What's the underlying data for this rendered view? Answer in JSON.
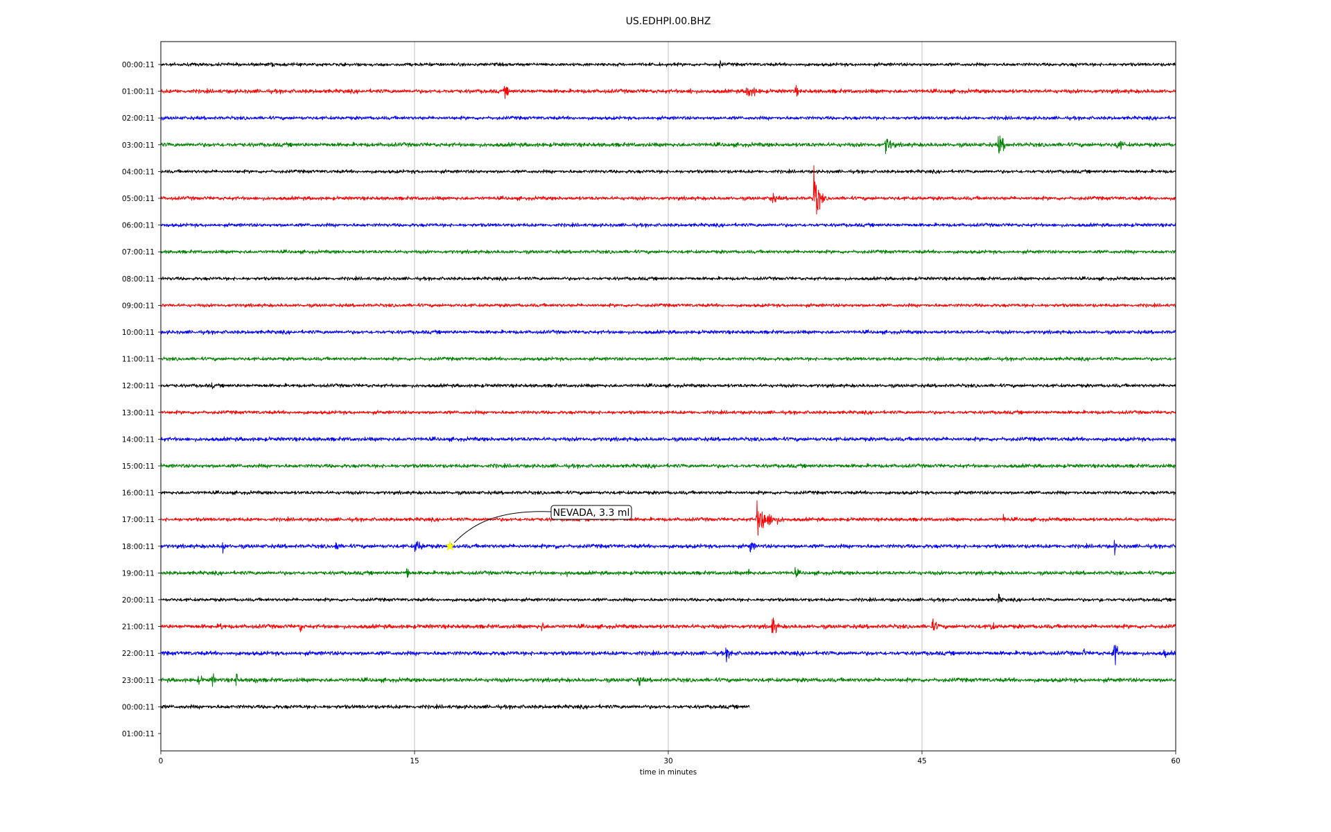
{
  "chart_data": {
    "type": "line",
    "title": "US.EDHPI.00.BHZ",
    "xlabel": "time in minutes",
    "ylabel": "",
    "xlim": [
      0,
      60
    ],
    "x_ticks": [
      0,
      15,
      30,
      45,
      60
    ],
    "x_tick_labels": [
      "0",
      "15",
      "30",
      "45",
      "60"
    ],
    "grid": "vertical at x ticks",
    "row_labels": [
      "00:00:11",
      "01:00:11",
      "02:00:11",
      "03:00:11",
      "04:00:11",
      "05:00:11",
      "06:00:11",
      "07:00:11",
      "08:00:11",
      "09:00:11",
      "10:00:11",
      "11:00:11",
      "12:00:11",
      "13:00:11",
      "14:00:11",
      "15:00:11",
      "16:00:11",
      "17:00:11",
      "18:00:11",
      "19:00:11",
      "20:00:11",
      "21:00:11",
      "22:00:11",
      "23:00:11",
      "00:00:11",
      "01:00:11"
    ],
    "color_cycle": [
      "#000000",
      "#ff0000",
      "#0000ff",
      "#008000"
    ],
    "traces": [
      {
        "row": 0,
        "start": 0,
        "end": 60,
        "noise": 2.2,
        "events": [
          {
            "t": 6.5,
            "amp": 4,
            "dur": 0.1
          },
          {
            "t": 33,
            "amp": 6,
            "dur": 0.3
          },
          {
            "t": 54,
            "amp": 5,
            "dur": 0.2
          }
        ]
      },
      {
        "row": 1,
        "start": 0,
        "end": 60,
        "noise": 2.6,
        "events": [
          {
            "t": 1.5,
            "amp": 6,
            "dur": 0.1
          },
          {
            "t": 20.3,
            "amp": 9,
            "dur": 0.5
          },
          {
            "t": 31.3,
            "amp": 6,
            "dur": 0.1
          },
          {
            "t": 34.6,
            "amp": 11,
            "dur": 1.2
          },
          {
            "t": 37.5,
            "amp": 8,
            "dur": 0.3
          }
        ]
      },
      {
        "row": 2,
        "start": 0,
        "end": 60,
        "noise": 2.3,
        "events": []
      },
      {
        "row": 3,
        "start": 0,
        "end": 60,
        "noise": 2.7,
        "events": [
          {
            "t": 42.8,
            "amp": 13,
            "dur": 0.8
          },
          {
            "t": 49.5,
            "amp": 16,
            "dur": 0.6
          },
          {
            "t": 56.5,
            "amp": 9,
            "dur": 0.8
          }
        ]
      },
      {
        "row": 4,
        "start": 0,
        "end": 60,
        "noise": 2.2,
        "events": [
          {
            "t": 15,
            "amp": 4,
            "dur": 0.2
          }
        ]
      },
      {
        "row": 5,
        "start": 0,
        "end": 60,
        "noise": 2.4,
        "events": [
          {
            "t": 36,
            "amp": 8,
            "dur": 1.0
          },
          {
            "t": 38.6,
            "amp": 38,
            "dur": 0.5
          }
        ]
      },
      {
        "row": 6,
        "start": 0,
        "end": 60,
        "noise": 2.3,
        "events": []
      },
      {
        "row": 7,
        "start": 0,
        "end": 60,
        "noise": 2.3,
        "events": []
      },
      {
        "row": 8,
        "start": 0,
        "end": 60,
        "noise": 2.2,
        "events": []
      },
      {
        "row": 9,
        "start": 0,
        "end": 60,
        "noise": 2.2,
        "events": []
      },
      {
        "row": 10,
        "start": 0,
        "end": 60,
        "noise": 2.4,
        "events": []
      },
      {
        "row": 11,
        "start": 0,
        "end": 60,
        "noise": 2.3,
        "events": []
      },
      {
        "row": 12,
        "start": 0,
        "end": 60,
        "noise": 2.3,
        "events": [
          {
            "t": 3,
            "amp": 5,
            "dur": 0.1
          }
        ]
      },
      {
        "row": 13,
        "start": 0,
        "end": 60,
        "noise": 2.3,
        "events": []
      },
      {
        "row": 14,
        "start": 0,
        "end": 60,
        "noise": 2.6,
        "events": []
      },
      {
        "row": 15,
        "start": 0,
        "end": 60,
        "noise": 2.5,
        "events": [
          {
            "t": 19.7,
            "amp": 5,
            "dur": 0.1
          }
        ]
      },
      {
        "row": 16,
        "start": 0,
        "end": 60,
        "noise": 2.3,
        "events": []
      },
      {
        "row": 17,
        "start": 0,
        "end": 60,
        "noise": 2.4,
        "events": [
          {
            "t": 35.2,
            "amp": 22,
            "dur": 1.6
          },
          {
            "t": 49.8,
            "amp": 7,
            "dur": 0.3
          }
        ]
      },
      {
        "row": 18,
        "start": 0,
        "end": 60,
        "noise": 2.6,
        "events": [
          {
            "t": 3.6,
            "amp": 13,
            "dur": 0.2
          },
          {
            "t": 10.3,
            "amp": 9,
            "dur": 0.4
          },
          {
            "t": 15,
            "amp": 9,
            "dur": 1.2
          },
          {
            "t": 23.3,
            "amp": 6,
            "dur": 0.2
          },
          {
            "t": 34.8,
            "amp": 10,
            "dur": 0.5
          },
          {
            "t": 56.3,
            "amp": 11,
            "dur": 0.2
          }
        ]
      },
      {
        "row": 19,
        "start": 0,
        "end": 60,
        "noise": 2.5,
        "events": [
          {
            "t": 14.5,
            "amp": 13,
            "dur": 0.2
          },
          {
            "t": 24,
            "amp": 6,
            "dur": 0.4
          },
          {
            "t": 34.7,
            "amp": 9,
            "dur": 0.2
          },
          {
            "t": 37.5,
            "amp": 7,
            "dur": 0.4
          }
        ]
      },
      {
        "row": 20,
        "start": 0,
        "end": 60,
        "noise": 2.2,
        "events": [
          {
            "t": 20.3,
            "amp": 6,
            "dur": 0.2
          },
          {
            "t": 49.5,
            "amp": 7,
            "dur": 0.4
          },
          {
            "t": 55.5,
            "amp": 5,
            "dur": 0.1
          }
        ]
      },
      {
        "row": 21,
        "start": 0,
        "end": 60,
        "noise": 2.7,
        "events": [
          {
            "t": 3.5,
            "amp": 7,
            "dur": 0.3
          },
          {
            "t": 8.2,
            "amp": 9,
            "dur": 0.3
          },
          {
            "t": 22.5,
            "amp": 7,
            "dur": 0.3
          },
          {
            "t": 36.1,
            "amp": 15,
            "dur": 0.5
          },
          {
            "t": 45.5,
            "amp": 10,
            "dur": 0.9
          },
          {
            "t": 49,
            "amp": 8,
            "dur": 0.6
          }
        ]
      },
      {
        "row": 22,
        "start": 0,
        "end": 60,
        "noise": 2.7,
        "events": [
          {
            "t": 33.3,
            "amp": 9,
            "dur": 1.2
          },
          {
            "t": 54.5,
            "amp": 7,
            "dur": 0.3
          },
          {
            "t": 56.3,
            "amp": 21,
            "dur": 0.4
          },
          {
            "t": 59.3,
            "amp": 7,
            "dur": 0.3
          }
        ]
      },
      {
        "row": 23,
        "start": 0,
        "end": 60,
        "noise": 2.7,
        "events": [
          {
            "t": 2.2,
            "amp": 7,
            "dur": 0.6
          },
          {
            "t": 3,
            "amp": 10,
            "dur": 0.3
          },
          {
            "t": 4.4,
            "amp": 12,
            "dur": 0.2
          },
          {
            "t": 5.5,
            "amp": 7,
            "dur": 0.4
          },
          {
            "t": 28.2,
            "amp": 8,
            "dur": 0.6
          }
        ]
      },
      {
        "row": 24,
        "start": 0,
        "end": 34.8,
        "noise": 2.5,
        "events": []
      }
    ],
    "annotations": [
      {
        "text": "NEVADA, 3.3 ml",
        "row": 18,
        "t": 17.1,
        "marker": "star",
        "marker_color": "#ffff00"
      }
    ]
  }
}
